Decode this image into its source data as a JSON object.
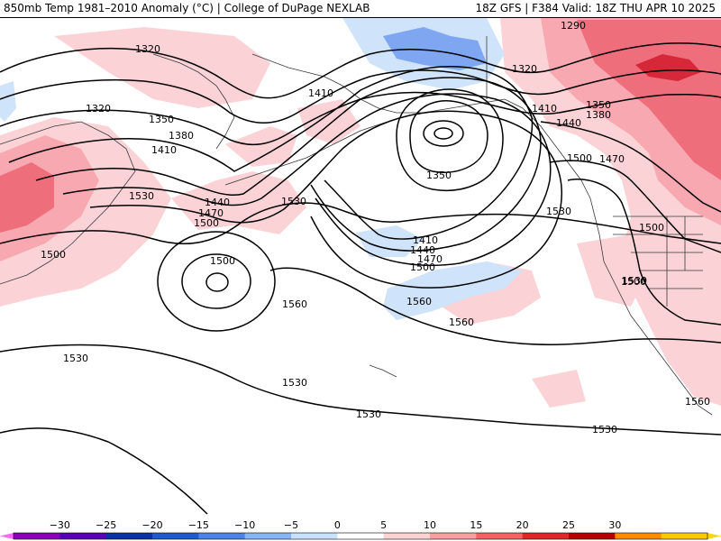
{
  "header": {
    "left_title": "850mb Temp 1981–2010 Anomaly (°C) | College of DuPage NEXLAB",
    "right_title": "18Z GFS | F384 Valid: 18Z THU APR 10 2025"
  },
  "map_labels": [
    {
      "id": "hgt-1320-a",
      "text": "1320"
    },
    {
      "id": "hgt-1320-b",
      "text": "1320"
    },
    {
      "id": "hgt-1320-c",
      "text": "1320"
    },
    {
      "id": "hgt-1290",
      "text": "1290"
    },
    {
      "id": "hgt-1350-a",
      "text": "1350"
    },
    {
      "id": "hgt-1350-b",
      "text": "1350"
    },
    {
      "id": "hgt-1350-low",
      "text": "1350"
    },
    {
      "id": "hgt-1380-a",
      "text": "1380"
    },
    {
      "id": "hgt-1380-b",
      "text": "1380"
    },
    {
      "id": "hgt-1410-a",
      "text": "1410"
    },
    {
      "id": "hgt-1410-b",
      "text": "1410"
    },
    {
      "id": "hgt-1410-c",
      "text": "1410"
    },
    {
      "id": "hgt-1410-d",
      "text": "1410"
    },
    {
      "id": "hgt-1440-a",
      "text": "1440"
    },
    {
      "id": "hgt-1440-b",
      "text": "1440"
    },
    {
      "id": "hgt-1440-c",
      "text": "1440"
    },
    {
      "id": "hgt-1470-a",
      "text": "1470"
    },
    {
      "id": "hgt-1470-b",
      "text": "1470"
    },
    {
      "id": "hgt-1470-c",
      "text": "1470"
    },
    {
      "id": "hgt-1500-a",
      "text": "1500"
    },
    {
      "id": "hgt-1500-b",
      "text": "1500"
    },
    {
      "id": "hgt-1500-c",
      "text": "1500"
    },
    {
      "id": "hgt-1500-d",
      "text": "1500"
    },
    {
      "id": "hgt-1500-e",
      "text": "1500"
    },
    {
      "id": "hgt-1500-f",
      "text": "1500"
    },
    {
      "id": "hgt-1500-g",
      "text": "1500"
    },
    {
      "id": "hgt-1530-a",
      "text": "1530"
    },
    {
      "id": "hgt-1530-b",
      "text": "1530"
    },
    {
      "id": "hgt-1530-c",
      "text": "1530"
    },
    {
      "id": "hgt-1530-d",
      "text": "1530"
    },
    {
      "id": "hgt-1530-e",
      "text": "1530"
    },
    {
      "id": "hgt-1530-f",
      "text": "1530"
    },
    {
      "id": "hgt-1530-g",
      "text": "1530"
    },
    {
      "id": "hgt-1530-h",
      "text": "1530"
    },
    {
      "id": "hgt-1560-a",
      "text": "1560"
    },
    {
      "id": "hgt-1560-b",
      "text": "1560"
    },
    {
      "id": "hgt-1560-c",
      "text": "1560"
    },
    {
      "id": "hgt-1560-d",
      "text": "1560"
    }
  ],
  "colorbar": {
    "ticks": [
      "−30",
      "−25",
      "−20",
      "−15",
      "−10",
      "−5",
      "0",
      "5",
      "10",
      "15",
      "20",
      "25",
      "30"
    ],
    "colors": [
      "#8c00b4",
      "#5a00b4",
      "#0a32a0",
      "#1e5ac8",
      "#4b82e6",
      "#87b4f5",
      "#c8e1fa",
      "#ffffff",
      "#fcd2d2",
      "#f8a0a0",
      "#f06464",
      "#dc2828",
      "#b40000",
      "#ff8c00",
      "#ffc800"
    ],
    "low_arrow_color": "#ff64ff",
    "high_arrow_color": "#ffd700"
  },
  "colors": {
    "warm_light": "#fbd3d6",
    "warm_mid": "#f7a8b0",
    "warm_strong": "#ef6e7b",
    "warm_deep": "#d7283a",
    "cold_light": "#cfe3fa",
    "cold_mid": "#7fa6f0",
    "contour": "#000000",
    "coast": "#3a3a3a"
  }
}
